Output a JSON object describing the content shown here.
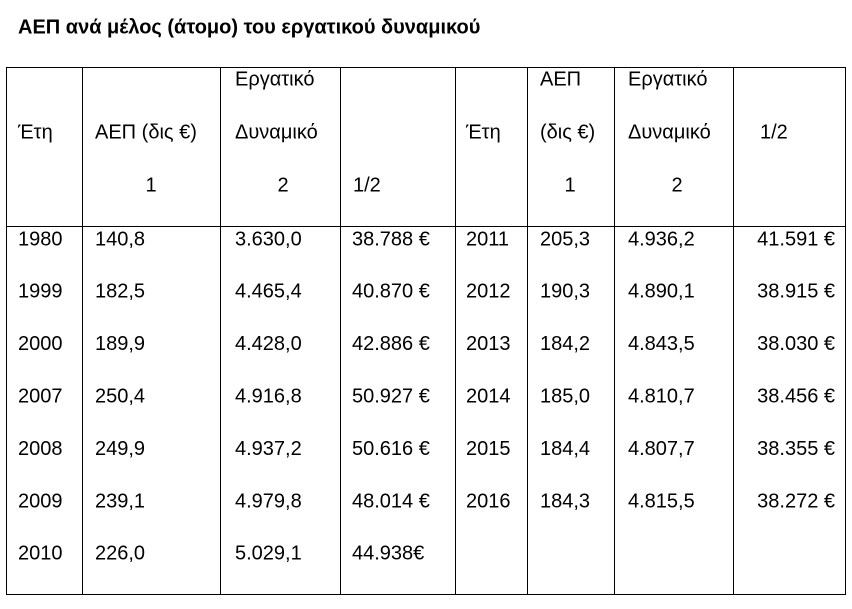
{
  "title": "ΑΕΠ ανά μέλος (άτομο) του εργατικού δυναμικού",
  "table": {
    "header": [
      [
        null,
        "Έτη",
        null
      ],
      [
        null,
        "ΑΕΠ (δις €)",
        "1"
      ],
      [
        "Εργατικό",
        "Δυναμικό",
        "2"
      ],
      [
        null,
        null,
        "1/2"
      ],
      [
        null,
        "Έτη",
        null
      ],
      [
        "ΑΕΠ",
        "(δις €)",
        "1"
      ],
      [
        "Εργατικό",
        "Δυναμικό",
        "2"
      ],
      [
        null,
        "1/2",
        null
      ]
    ],
    "rows": [
      [
        "1980",
        "140,8",
        "3.630,0",
        "38.788 €",
        "2011",
        "205,3",
        "4.936,2",
        "41.591 €"
      ],
      [
        "1999",
        "182,5",
        "4.465,4",
        "40.870 €",
        "2012",
        "190,3",
        "4.890,1",
        "38.915 €"
      ],
      [
        "2000",
        "189,9",
        "4.428,0",
        "42.886 €",
        "2013",
        "184,2",
        "4.843,5",
        "38.030 €"
      ],
      [
        "2007",
        "250,4",
        "4.916,8",
        "50.927 €",
        "2014",
        "185,0",
        "4.810,7",
        "38.456 €"
      ],
      [
        "2008",
        "249,9",
        "4.937,2",
        "50.616 €",
        "2015",
        "184,4",
        "4.807,7",
        "38.355 €"
      ],
      [
        "2009",
        "239,1",
        "4.979,8",
        "48.014 €",
        "2016",
        "184,3",
        "4.815,5",
        "38.272 €"
      ],
      [
        "2010",
        "226,0",
        "5.029,1",
        "44.938€",
        null,
        null,
        null,
        null
      ]
    ]
  }
}
